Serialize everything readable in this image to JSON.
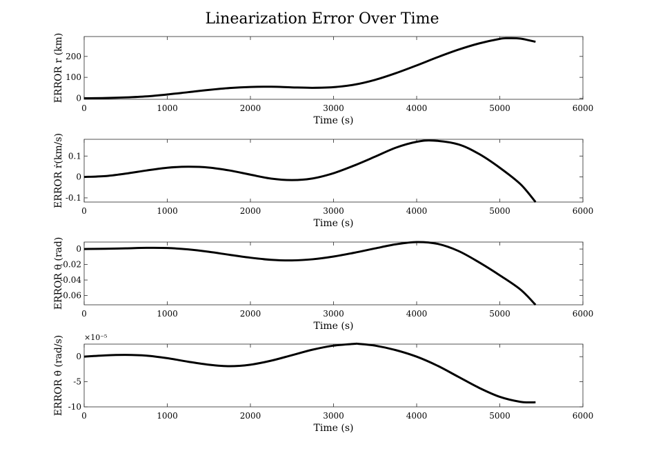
{
  "figure": {
    "title": "Linearization Error Over Time"
  },
  "chart_data": [
    {
      "type": "line",
      "xlabel": "Time (s)",
      "ylabel": "ERROR r (km)",
      "xlim": [
        0,
        6000
      ],
      "ylim": [
        -5,
        295
      ],
      "xticks": [
        "0",
        "1000",
        "2000",
        "3000",
        "4000",
        "5000",
        "6000"
      ],
      "yticks": [
        {
          "value": 0,
          "label": "0"
        },
        {
          "value": 100,
          "label": "100"
        },
        {
          "value": 200,
          "label": "200"
        }
      ],
      "grid": false,
      "multiplier": "",
      "series": [
        {
          "color": "#000000",
          "x": [
            0,
            250,
            500,
            750,
            1000,
            1250,
            1500,
            1750,
            2000,
            2250,
            2500,
            2750,
            3000,
            3250,
            3500,
            3750,
            4000,
            4250,
            4500,
            4750,
            5000,
            5100,
            5250,
            5430
          ],
          "y": [
            0,
            1,
            4,
            9,
            18,
            29,
            40,
            49,
            54,
            55,
            52,
            50,
            53,
            65,
            88,
            120,
            157,
            196,
            232,
            262,
            284,
            287,
            285,
            270
          ]
        }
      ]
    },
    {
      "type": "line",
      "xlabel": "Time (s)",
      "ylabel": "ERROR ṙ(km/s)",
      "xlim": [
        0,
        6000
      ],
      "ylim": [
        -0.12,
        0.18
      ],
      "xticks": [
        "0",
        "1000",
        "2000",
        "3000",
        "4000",
        "5000",
        "6000"
      ],
      "yticks": [
        {
          "value": -0.1,
          "label": "-0.1"
        },
        {
          "value": 0,
          "label": "0"
        },
        {
          "value": 0.1,
          "label": "0.1"
        }
      ],
      "grid": false,
      "multiplier": "",
      "series": [
        {
          "color": "#000000",
          "x": [
            0,
            250,
            500,
            750,
            1000,
            1250,
            1500,
            1750,
            2000,
            2250,
            2500,
            2750,
            3000,
            3250,
            3500,
            3750,
            4000,
            4200,
            4500,
            4750,
            5000,
            5250,
            5430
          ],
          "y": [
            0,
            0.004,
            0.016,
            0.031,
            0.044,
            0.049,
            0.045,
            0.031,
            0.011,
            -0.008,
            -0.015,
            -0.007,
            0.018,
            0.055,
            0.097,
            0.14,
            0.168,
            0.174,
            0.156,
            0.11,
            0.044,
            -0.035,
            -0.12
          ]
        }
      ]
    },
    {
      "type": "line",
      "xlabel": "Time (s)",
      "ylabel": "ERROR θ (rad)",
      "xlim": [
        0,
        6000
      ],
      "ylim": [
        -0.072,
        0.009
      ],
      "xticks": [
        "0",
        "1000",
        "2000",
        "3000",
        "4000",
        "5000",
        "6000"
      ],
      "yticks": [
        {
          "value": 0,
          "label": "0"
        },
        {
          "value": -0.02,
          "label": "-0.02"
        },
        {
          "value": -0.04,
          "label": "-0.04"
        },
        {
          "value": -0.06,
          "label": "-0.06"
        }
      ],
      "grid": false,
      "multiplier": "",
      "series": [
        {
          "color": "#000000",
          "x": [
            0,
            250,
            500,
            750,
            1000,
            1250,
            1500,
            1750,
            2000,
            2250,
            2500,
            2750,
            3000,
            3250,
            3500,
            3750,
            4000,
            4250,
            4500,
            4750,
            5000,
            5250,
            5430
          ],
          "y": [
            0,
            0.0003,
            0.0009,
            0.0015,
            0.0013,
            -0.0005,
            -0.0036,
            -0.0075,
            -0.0112,
            -0.0139,
            -0.0147,
            -0.0132,
            -0.0097,
            -0.0048,
            0.0008,
            0.0061,
            0.009,
            0.0067,
            -0.0024,
            -0.0171,
            -0.0339,
            -0.0524,
            -0.072
          ]
        }
      ]
    },
    {
      "type": "line",
      "xlabel": "Time (s)",
      "ylabel": "ERROR θ̇ (rad/s)",
      "xlim": [
        0,
        6000
      ],
      "ylim": [
        -10,
        2.5
      ],
      "xticks": [
        "0",
        "1000",
        "2000",
        "3000",
        "4000",
        "5000",
        "6000"
      ],
      "yticks": [
        {
          "value": 0,
          "label": "0"
        },
        {
          "value": -5,
          "label": "-5"
        },
        {
          "value": -10,
          "label": "-10"
        }
      ],
      "grid": false,
      "multiplier": "×10⁻⁵",
      "series": [
        {
          "color": "#000000",
          "x": [
            0,
            250,
            500,
            750,
            1000,
            1250,
            1500,
            1750,
            2000,
            2250,
            2500,
            2750,
            3000,
            3250,
            3300,
            3500,
            3750,
            4000,
            4250,
            4500,
            4750,
            5000,
            5250,
            5400,
            5430
          ],
          "y": [
            0,
            0.25,
            0.35,
            0.2,
            -0.3,
            -1.0,
            -1.6,
            -1.9,
            -1.6,
            -0.8,
            0.3,
            1.4,
            2.2,
            2.55,
            2.55,
            2.2,
            1.3,
            0,
            -1.8,
            -4.0,
            -6.2,
            -8.0,
            -9.0,
            -9.1,
            -9.05
          ]
        }
      ]
    }
  ]
}
